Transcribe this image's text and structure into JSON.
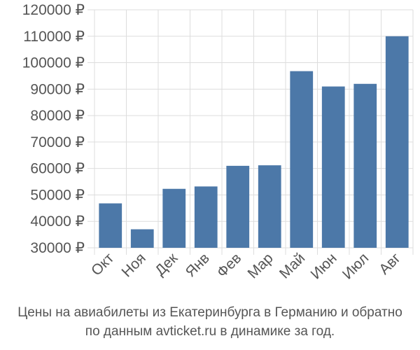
{
  "chart_data": {
    "type": "bar",
    "categories": [
      "Окт",
      "Ноя",
      "Дек",
      "Янв",
      "Фев",
      "Мар",
      "Май",
      "Июн",
      "Июл",
      "Авг"
    ],
    "values": [
      46800,
      37000,
      52300,
      53200,
      61000,
      61200,
      96800,
      91000,
      92000,
      110000
    ],
    "ylim": [
      30000,
      120000
    ],
    "yticks": [
      30000,
      40000,
      50000,
      60000,
      70000,
      80000,
      90000,
      100000,
      110000,
      120000
    ],
    "y_unit": "₽",
    "grid": true,
    "bar_color": "#4c78a8",
    "title_line1": "Цены на авиабилеты из Екатеринбурга в Германию и обратно",
    "title_line2": "по данным avticket.ru в динамике за год."
  }
}
